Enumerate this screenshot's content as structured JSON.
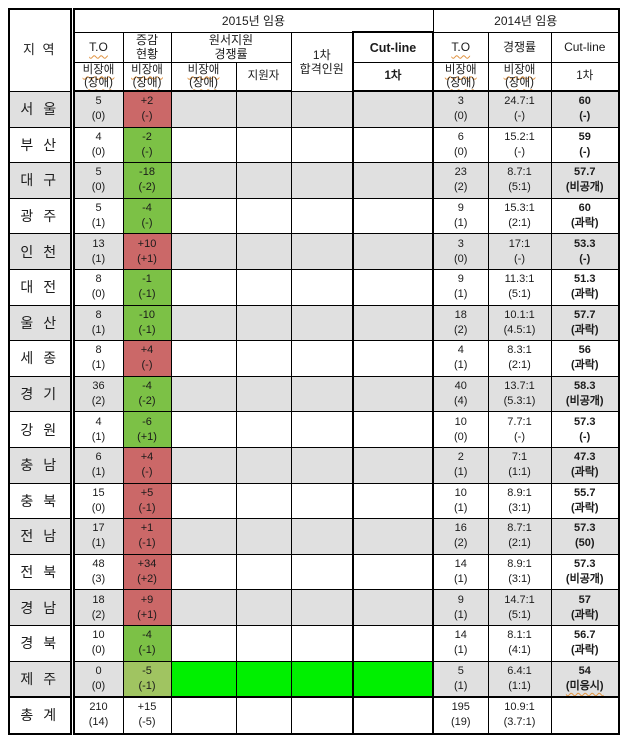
{
  "header": {
    "group_2015": "2015년 임용",
    "group_2014": "2014년 임용",
    "region": "지 역",
    "to_2015": "T.O",
    "change_line1": "증감",
    "change_line2": "현황",
    "application_line1": "원서지원",
    "application_line2": "경쟁률",
    "applicants": "지원자",
    "pass_line1": "1차",
    "pass_line2": "합격인원",
    "cutline_2015": "Cut-line",
    "cutline_2015_sub": "1차",
    "to_2014": "T.O",
    "rate_2014": "경쟁률",
    "cutline_2014": "Cut-line",
    "cutline_2014_sub": "1차",
    "nondisabled": "비장애",
    "disabled": "(장애)"
  },
  "colors": {
    "increase_bg": "#cb6868",
    "decrease_bg": "#7cc146",
    "jeju_decrease_bg": "#a0c461",
    "highlight_bg": "#00f000",
    "row_shade": "#e0e0e0",
    "spellcheck_underline": "#e0923f"
  },
  "rows": [
    {
      "region": "서 울",
      "to": "5",
      "to_p": "(0)",
      "chg": "+2",
      "chg_p": "(-)",
      "trend": "up",
      "to14": "3",
      "to14_p": "(0)",
      "rate14": "24.7:1",
      "rate14_p": "(-)",
      "cut14": "60",
      "cut14_p": "(-)"
    },
    {
      "region": "부 산",
      "to": "4",
      "to_p": "(0)",
      "chg": "-2",
      "chg_p": "(-)",
      "trend": "down",
      "to14": "6",
      "to14_p": "(0)",
      "rate14": "15.2:1",
      "rate14_p": "(-)",
      "cut14": "59",
      "cut14_p": "(-)"
    },
    {
      "region": "대 구",
      "to": "5",
      "to_p": "(0)",
      "chg": "-18",
      "chg_p": "(-2)",
      "trend": "down",
      "to14": "23",
      "to14_p": "(2)",
      "rate14": "8.7:1",
      "rate14_p": "(5:1)",
      "cut14": "57.7",
      "cut14_p": "(비공개)"
    },
    {
      "region": "광 주",
      "to": "5",
      "to_p": "(1)",
      "chg": "-4",
      "chg_p": "(-)",
      "trend": "down",
      "to14": "9",
      "to14_p": "(1)",
      "rate14": "15.3:1",
      "rate14_p": "(2:1)",
      "cut14": "60",
      "cut14_p": "(과락)"
    },
    {
      "region": "인 천",
      "to": "13",
      "to_p": "(1)",
      "chg": "+10",
      "chg_p": "(+1)",
      "trend": "up",
      "to14": "3",
      "to14_p": "(0)",
      "rate14": "17:1",
      "rate14_p": "(-)",
      "cut14": "53.3",
      "cut14_p": "(-)"
    },
    {
      "region": "대 전",
      "to": "8",
      "to_p": "(0)",
      "chg": "-1",
      "chg_p": "(-1)",
      "trend": "down",
      "to14": "9",
      "to14_p": "(1)",
      "rate14": "11.3:1",
      "rate14_p": "(5:1)",
      "cut14": "51.3",
      "cut14_p": "(과락)"
    },
    {
      "region": "울 산",
      "to": "8",
      "to_p": "(1)",
      "chg": "-10",
      "chg_p": "(-1)",
      "trend": "down",
      "to14": "18",
      "to14_p": "(2)",
      "rate14": "10.1:1",
      "rate14_p": "(4.5:1)",
      "cut14": "57.7",
      "cut14_p": "(과락)"
    },
    {
      "region": "세 종",
      "to": "8",
      "to_p": "(1)",
      "chg": "+4",
      "chg_p": "(-)",
      "trend": "up",
      "to14": "4",
      "to14_p": "(1)",
      "rate14": "8.3:1",
      "rate14_p": "(2:1)",
      "cut14": "56",
      "cut14_p": "(과락)"
    },
    {
      "region": "경 기",
      "to": "36",
      "to_p": "(2)",
      "chg": "-4",
      "chg_p": "(-2)",
      "trend": "down",
      "to14": "40",
      "to14_p": "(4)",
      "rate14": "13.7:1",
      "rate14_p": "(5.3:1)",
      "cut14": "58.3",
      "cut14_p": "(비공개)"
    },
    {
      "region": "강 원",
      "to": "4",
      "to_p": "(1)",
      "chg": "-6",
      "chg_p": "(+1)",
      "trend": "down",
      "to14": "10",
      "to14_p": "(0)",
      "rate14": "7.7:1",
      "rate14_p": "(-)",
      "cut14": "57.3",
      "cut14_p": "(-)"
    },
    {
      "region": "충 남",
      "to": "6",
      "to_p": "(1)",
      "chg": "+4",
      "chg_p": "(-)",
      "trend": "up",
      "to14": "2",
      "to14_p": "(1)",
      "rate14": "7:1",
      "rate14_p": "(1:1)",
      "cut14": "47.3",
      "cut14_p": "(과락)"
    },
    {
      "region": "충 북",
      "to": "15",
      "to_p": "(0)",
      "chg": "+5",
      "chg_p": "(-1)",
      "trend": "up",
      "to14": "10",
      "to14_p": "(1)",
      "rate14": "8.9:1",
      "rate14_p": "(3:1)",
      "cut14": "55.7",
      "cut14_p": "(과락)"
    },
    {
      "region": "전 남",
      "to": "17",
      "to_p": "(1)",
      "chg": "+1",
      "chg_p": "(-1)",
      "trend": "up",
      "to14": "16",
      "to14_p": "(2)",
      "rate14": "8.7:1",
      "rate14_p": "(2:1)",
      "cut14": "57.3",
      "cut14_p": "(50)"
    },
    {
      "region": "전 북",
      "to": "48",
      "to_p": "(3)",
      "chg": "+34",
      "chg_p": "(+2)",
      "trend": "up",
      "to14": "14",
      "to14_p": "(1)",
      "rate14": "8.9:1",
      "rate14_p": "(3:1)",
      "cut14": "57.3",
      "cut14_p": "(비공개)"
    },
    {
      "region": "경 남",
      "to": "18",
      "to_p": "(2)",
      "chg": "+9",
      "chg_p": "(+1)",
      "trend": "up",
      "to14": "9",
      "to14_p": "(1)",
      "rate14": "14.7:1",
      "rate14_p": "(5:1)",
      "cut14": "57",
      "cut14_p": "(과락)"
    },
    {
      "region": "경 북",
      "to": "10",
      "to_p": "(0)",
      "chg": "-4",
      "chg_p": "(-1)",
      "trend": "down",
      "to14": "14",
      "to14_p": "(1)",
      "rate14": "8.1:1",
      "rate14_p": "(4:1)",
      "cut14": "56.7",
      "cut14_p": "(과락)"
    },
    {
      "region": "제 주",
      "to": "0",
      "to_p": "(0)",
      "chg": "-5",
      "chg_p": "(-1)",
      "trend": "jeju",
      "highlight": true,
      "to14": "5",
      "to14_p": "(1)",
      "rate14": "6.4:1",
      "rate14_p": "(1:1)",
      "cut14": "54",
      "cut14_p": "(미응시)",
      "cut14_sp": true
    },
    {
      "region": "총 계",
      "to": "210",
      "to_p": "(14)",
      "chg": "+15",
      "chg_p": "(-5)",
      "trend": "none",
      "total": true,
      "to14": "195",
      "to14_p": "(19)",
      "rate14": "10.9:1",
      "rate14_p": "(3.7:1)"
    }
  ]
}
